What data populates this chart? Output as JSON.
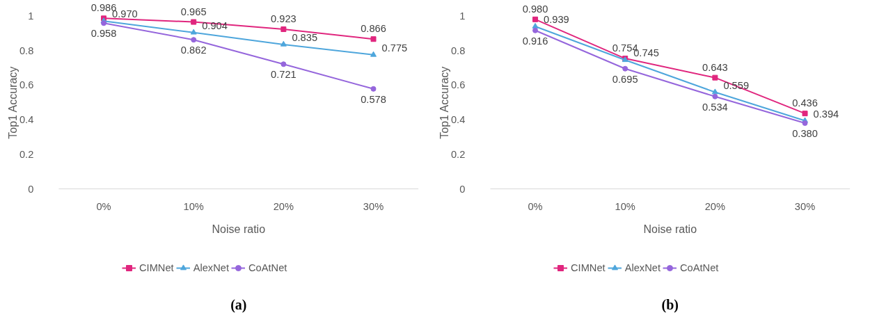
{
  "chart_data": [
    {
      "type": "line",
      "xlabel": "Noise ratio",
      "ylabel": "Top1 Accuracy",
      "categories": [
        "0%",
        "10%",
        "20%",
        "30%"
      ],
      "ylim": [
        0,
        1
      ],
      "yticks": [
        0,
        0.2,
        0.4,
        0.6,
        0.8,
        1
      ],
      "grid": false,
      "legend": "bottom",
      "annotations": [
        "(a)"
      ],
      "series": [
        {
          "name": "CIMNet",
          "color": "#e0267e",
          "marker": "square",
          "values": [
            0.986,
            0.965,
            0.923,
            0.866
          ],
          "value_labels": [
            "0.986",
            "0.965",
            "0.923",
            "0.866"
          ]
        },
        {
          "name": "AlexNet",
          "color": "#4ea6dc",
          "marker": "triangle",
          "values": [
            0.97,
            0.904,
            0.835,
            0.775
          ],
          "value_labels": [
            "0.970",
            "0.904",
            "0.835",
            "0.775"
          ]
        },
        {
          "name": "CoAtNet",
          "color": "#9566dc",
          "marker": "circle",
          "values": [
            0.958,
            0.862,
            0.721,
            0.578
          ],
          "value_labels": [
            "0.958",
            "0.862",
            "0.721",
            "0.578"
          ]
        }
      ]
    },
    {
      "type": "line",
      "xlabel": "Noise ratio",
      "ylabel": "Top1 Accuracy",
      "categories": [
        "0%",
        "10%",
        "20%",
        "30%"
      ],
      "ylim": [
        0,
        1
      ],
      "yticks": [
        0,
        0.2,
        0.4,
        0.6,
        0.8,
        1
      ],
      "grid": false,
      "legend": "bottom",
      "annotations": [
        "(b)"
      ],
      "series": [
        {
          "name": "CIMNet",
          "color": "#e0267e",
          "marker": "square",
          "values": [
            0.98,
            0.754,
            0.643,
            0.436
          ],
          "value_labels": [
            "0.980",
            "0.754",
            "0.643",
            "0.436"
          ]
        },
        {
          "name": "AlexNet",
          "color": "#4ea6dc",
          "marker": "triangle",
          "values": [
            0.939,
            0.745,
            0.559,
            0.394
          ],
          "value_labels": [
            "0.939",
            "0.745",
            "0.559",
            "0.394"
          ]
        },
        {
          "name": "CoAtNet",
          "color": "#9566dc",
          "marker": "circle",
          "values": [
            0.916,
            0.695,
            0.534,
            0.38
          ],
          "value_labels": [
            "0.916",
            "0.695",
            "0.534",
            "0.380"
          ]
        }
      ]
    }
  ]
}
